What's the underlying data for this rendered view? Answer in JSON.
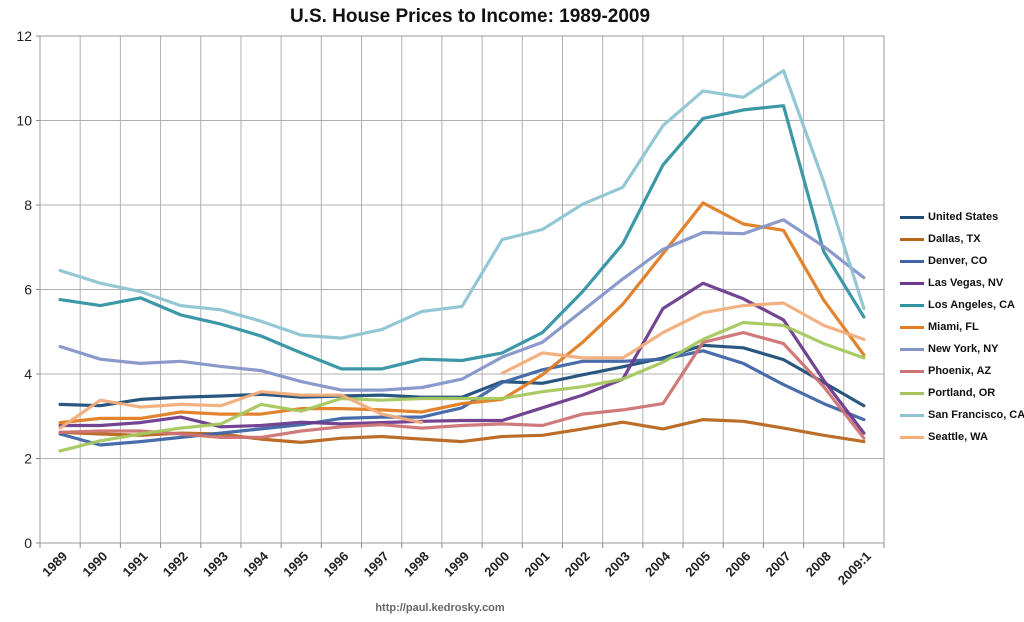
{
  "chart_data": {
    "type": "line",
    "title": "U.S. House Prices to Income: 1989-2009",
    "footer": "http://paul.kedrosky.com",
    "categories": [
      "1989",
      "1990",
      "1991",
      "1992",
      "1993",
      "1994",
      "1995",
      "1996",
      "1997",
      "1998",
      "1999",
      "2000",
      "2001",
      "2002",
      "2003",
      "2004",
      "2005",
      "2006",
      "2007",
      "2008",
      "2009:1"
    ],
    "y_ticks": [
      "0",
      "2",
      "4",
      "6",
      "8",
      "10",
      "12"
    ],
    "ylim": [
      0,
      12
    ],
    "grid": true,
    "legend_position": "right",
    "series": [
      {
        "name": "United States",
        "color": "#1f4e79",
        "values": [
          3.28,
          3.25,
          3.4,
          3.45,
          3.48,
          3.52,
          3.45,
          3.48,
          3.5,
          3.45,
          3.45,
          3.82,
          3.78,
          3.98,
          4.17,
          4.38,
          4.68,
          4.62,
          4.34,
          3.8,
          3.25
        ]
      },
      {
        "name": "Dallas, TX",
        "color": "#b8651c",
        "values": [
          2.62,
          2.58,
          2.55,
          2.6,
          2.58,
          2.46,
          2.38,
          2.48,
          2.52,
          2.46,
          2.4,
          2.52,
          2.55,
          2.7,
          2.86,
          2.7,
          2.92,
          2.88,
          2.72,
          2.55,
          2.4
        ]
      },
      {
        "name": "Denver, CO",
        "color": "#3f65a6",
        "values": [
          2.58,
          2.32,
          2.4,
          2.5,
          2.6,
          2.7,
          2.8,
          2.95,
          2.98,
          2.98,
          3.2,
          3.8,
          4.1,
          4.3,
          4.3,
          4.35,
          4.55,
          4.25,
          3.75,
          3.3,
          2.92
        ]
      },
      {
        "name": "Las Vegas, NV",
        "color": "#6b3a8c",
        "values": [
          2.78,
          2.78,
          2.85,
          2.98,
          2.75,
          2.78,
          2.86,
          2.82,
          2.85,
          2.88,
          2.9,
          2.9,
          3.2,
          3.5,
          3.88,
          5.55,
          6.15,
          5.78,
          5.28,
          3.85,
          2.6
        ]
      },
      {
        "name": "Los Angeles, CA",
        "color": "#3192a2",
        "values": [
          5.76,
          5.62,
          5.8,
          5.4,
          5.18,
          4.9,
          4.5,
          4.12,
          4.12,
          4.35,
          4.32,
          4.5,
          4.98,
          5.95,
          7.08,
          8.95,
          10.05,
          10.25,
          10.35,
          6.9,
          5.35
        ]
      },
      {
        "name": "Miami, FL",
        "color": "#e07d22",
        "values": [
          2.85,
          2.95,
          2.95,
          3.1,
          3.05,
          3.05,
          3.18,
          3.18,
          3.15,
          3.1,
          3.3,
          3.4,
          3.98,
          4.75,
          5.65,
          6.85,
          8.05,
          7.55,
          7.4,
          5.75,
          4.45
        ]
      },
      {
        "name": "New York, NY",
        "color": "#8495c8",
        "values": [
          4.65,
          4.35,
          4.25,
          4.3,
          4.18,
          4.08,
          3.82,
          3.62,
          3.62,
          3.68,
          3.88,
          4.4,
          4.75,
          5.5,
          6.25,
          6.95,
          7.35,
          7.32,
          7.65,
          7.02,
          6.28
        ]
      },
      {
        "name": "Phoenix, AZ",
        "color": "#cd7375",
        "values": [
          2.62,
          2.65,
          2.65,
          2.58,
          2.5,
          2.5,
          2.65,
          2.75,
          2.8,
          2.72,
          2.78,
          2.82,
          2.78,
          3.05,
          3.15,
          3.3,
          4.75,
          4.98,
          4.72,
          3.7,
          2.48
        ]
      },
      {
        "name": "Portland, OR",
        "color": "#a4c75d",
        "values": [
          2.18,
          2.42,
          2.58,
          2.72,
          2.82,
          3.28,
          3.12,
          3.42,
          3.38,
          3.42,
          3.42,
          3.42,
          3.58,
          3.7,
          3.88,
          4.28,
          4.82,
          5.22,
          5.15,
          4.72,
          4.38
        ]
      },
      {
        "name": "San Francisco, CA",
        "color": "#8ec4d2",
        "values": [
          6.45,
          6.15,
          5.95,
          5.62,
          5.52,
          5.25,
          4.92,
          4.85,
          5.05,
          5.48,
          5.6,
          7.18,
          7.42,
          8.02,
          8.42,
          9.88,
          10.7,
          10.55,
          11.18,
          8.55,
          5.55
        ]
      },
      {
        "name": "Seattle, WA",
        "color": "#f2ad7b",
        "values": [
          2.72,
          3.38,
          3.22,
          3.28,
          3.25,
          3.58,
          3.5,
          3.5,
          3.05,
          2.85,
          null,
          4.02,
          4.5,
          4.38,
          4.38,
          4.98,
          5.45,
          5.62,
          5.68,
          5.15,
          4.82
        ]
      }
    ]
  }
}
